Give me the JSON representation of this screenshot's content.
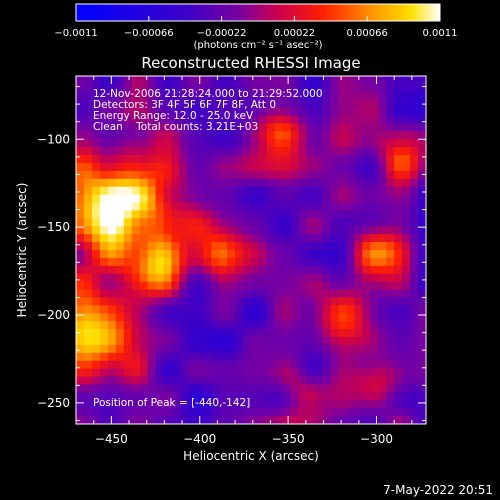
{
  "chart_data": {
    "type": "heatmap",
    "title": "Reconstructed RHESSI Image",
    "xlabel": "Heliocentric X (arcsec)",
    "ylabel": "Heliocentric Y (arcsec)",
    "xlim": [
      -470,
      -272
    ],
    "ylim": [
      -262,
      -64
    ],
    "xticks": [
      -450,
      -400,
      -350,
      -300
    ],
    "yticks": [
      -100,
      -150,
      -200,
      -250
    ],
    "xtick_labels": [
      "−450",
      "−400",
      "−350",
      "−300"
    ],
    "ytick_labels": [
      "−100",
      "−150",
      "−200",
      "−250"
    ],
    "colorbar": {
      "range": [
        -0.0011,
        0.0011
      ],
      "ticks": [
        -0.0011,
        -0.00066,
        -0.00022,
        0.00022,
        0.00066,
        0.0011
      ],
      "tick_labels": [
        "−0.0011",
        "−0.00066",
        "−0.00022",
        "0.00022",
        "0.00066",
        "0.0011"
      ],
      "label": "(photons cm⁻² s⁻¹ asec⁻²)"
    },
    "annotations": [
      "12-Nov-2006 21:28:24.000 to 21:29:52.000",
      "Detectors: 3F 4F 5F 6F 7F 8F, Att 0",
      "Energy Range: 12.0 - 25.0 keV",
      "Clean    Total counts: 3.21E+03"
    ],
    "peak_label": "Position of Peak = [-440,-142]",
    "peak": [
      -440,
      -142
    ],
    "sources": [
      {
        "x": -445,
        "y": -140,
        "value": 0.0011
      },
      {
        "x": -460,
        "y": -210,
        "value": 0.0008
      },
      {
        "x": -425,
        "y": -175,
        "value": 0.0006
      },
      {
        "x": -300,
        "y": -165,
        "value": 0.0006
      },
      {
        "x": -318,
        "y": -200,
        "value": 0.0005
      },
      {
        "x": -355,
        "y": -95,
        "value": 0.0004
      },
      {
        "x": -390,
        "y": -165,
        "value": 0.0004
      },
      {
        "x": -300,
        "y": -240,
        "value": 0.0003
      },
      {
        "x": -340,
        "y": -245,
        "value": 0.0003
      },
      {
        "x": -285,
        "y": -110,
        "value": 0.0003
      }
    ]
  },
  "footer": {
    "timestamp": "7-May-2022 20:51"
  }
}
